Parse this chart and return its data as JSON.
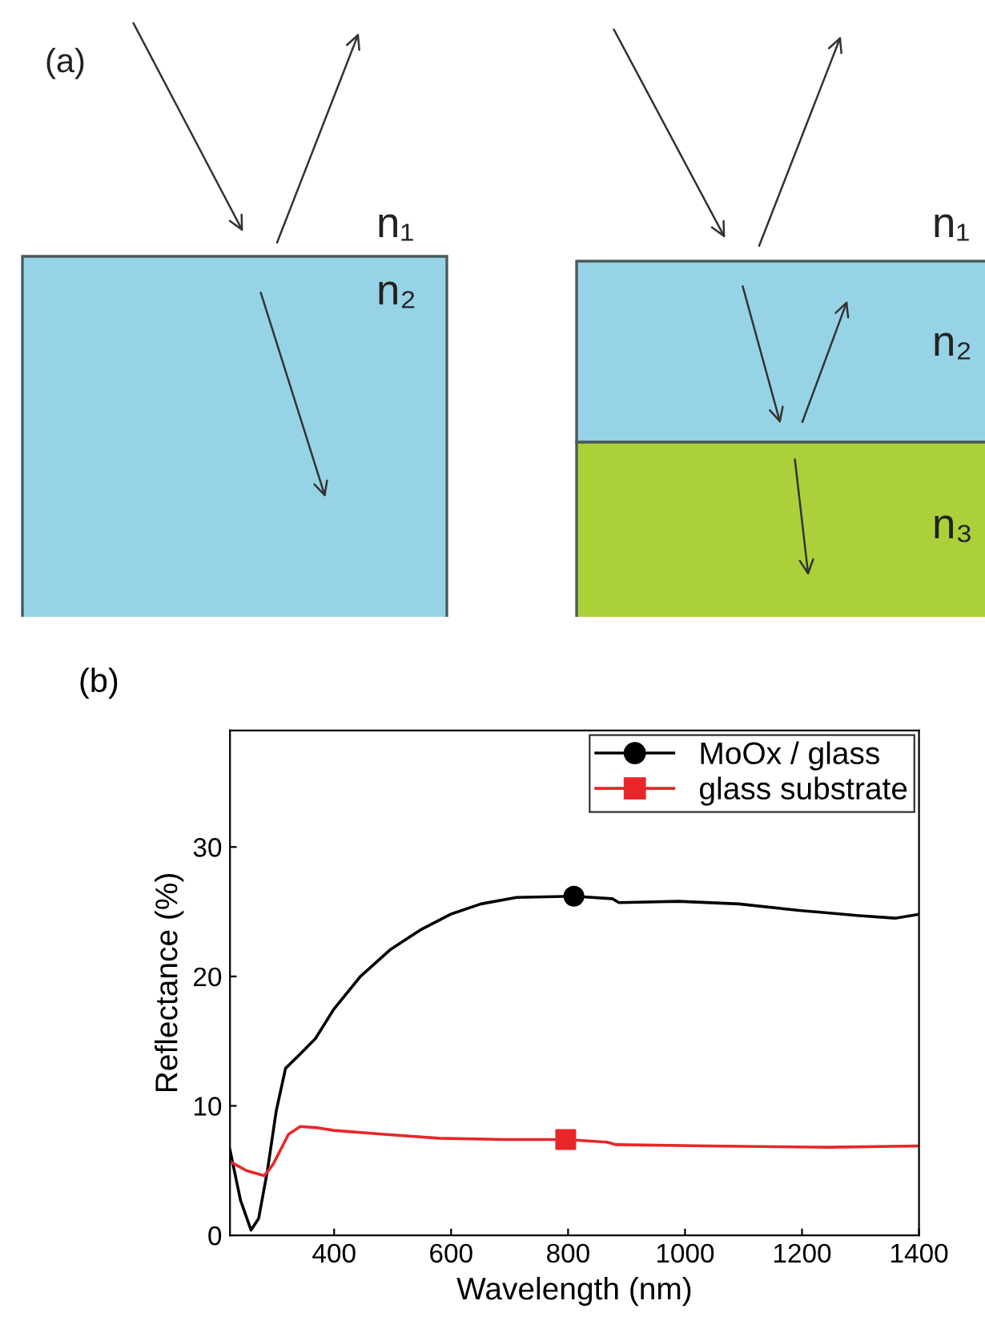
{
  "chart_data": [
    {
      "type": "other",
      "annotations": [
        "(a)",
        "n₁",
        "n₂",
        "n₁",
        "n₂",
        "n₃"
      ]
    },
    {
      "type": "line",
      "title": "(b)",
      "xlabel": "Wavelength (nm)",
      "ylabel": "Reflectance (%)",
      "xlim": [
        222,
        1400
      ],
      "ylim": [
        0,
        39
      ],
      "xticks": [
        400,
        600,
        800,
        1000,
        1200,
        1400
      ],
      "yticks": [
        0,
        10,
        20,
        30
      ],
      "grid": false,
      "legend": "top right",
      "series": [
        {
          "name": "MoOx / glass",
          "color": "#000000",
          "x": [
            222,
            240,
            258,
            271,
            286,
            301,
            317,
            342,
            368,
            400,
            445,
            497,
            548,
            599,
            651,
            712,
            810,
            876,
            887,
            989,
            1092,
            1195,
            1297,
            1359,
            1400
          ],
          "values": [
            6.6,
            2.7,
            0.4,
            1.3,
            5.0,
            9.6,
            12.9,
            14.0,
            15.2,
            17.5,
            20.0,
            22.1,
            23.6,
            24.8,
            25.6,
            26.1,
            26.2,
            26.0,
            25.7,
            25.8,
            25.6,
            25.1,
            24.7,
            24.5,
            24.8
          ]
        },
        {
          "name": "glass substrate",
          "color": "#e8262a",
          "x": [
            222,
            250,
            281,
            296,
            322,
            342,
            373,
            400,
            486,
            579,
            692,
            796,
            866,
            882,
            1041,
            1246,
            1400
          ],
          "values": [
            5.7,
            5.0,
            4.6,
            5.5,
            7.8,
            8.4,
            8.3,
            8.1,
            7.8,
            7.5,
            7.4,
            7.4,
            7.2,
            7.0,
            6.9,
            6.8,
            6.9
          ]
        },
        {
          "type": "scatter",
          "color": "#000000",
          "marker": "circle",
          "x": [
            810
          ],
          "values": [
            26.2
          ]
        },
        {
          "type": "scatter",
          "color": "#e8262a",
          "marker": "square",
          "x": [
            796
          ],
          "values": [
            7.4
          ]
        }
      ]
    }
  ]
}
